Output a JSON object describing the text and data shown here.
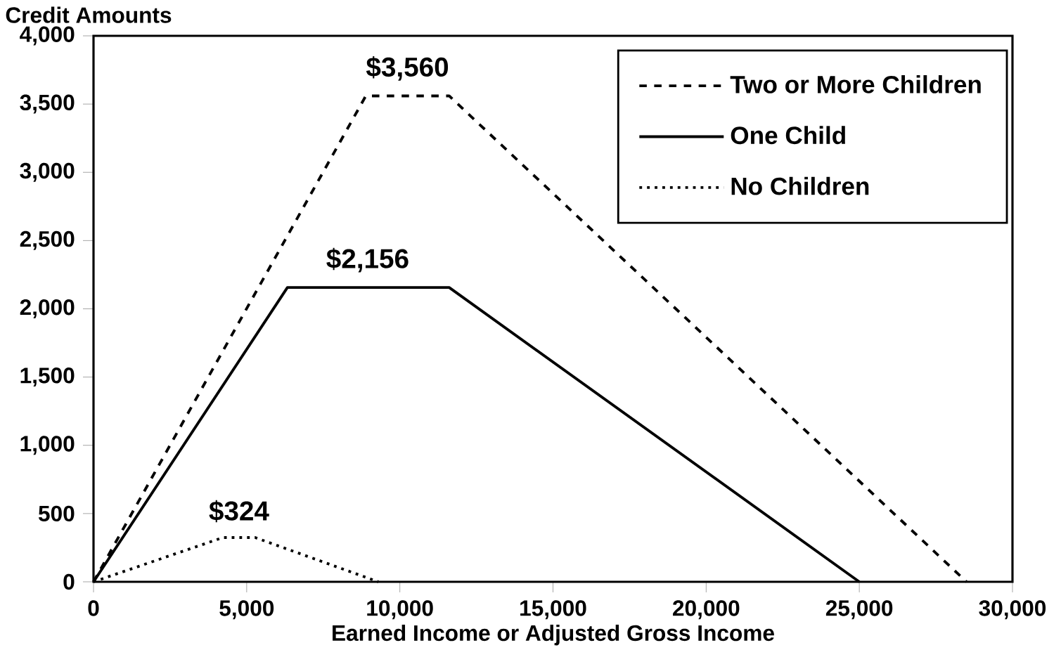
{
  "chart_data": {
    "type": "line",
    "xlabel": "Earned Income or Adjusted Gross Income",
    "ylabel": "Credit Amounts",
    "xlim": [
      0,
      30000
    ],
    "ylim": [
      0,
      4000
    ],
    "xticks": [
      {
        "value": 0,
        "label": "0"
      },
      {
        "value": 5000,
        "label": "5,000"
      },
      {
        "value": 10000,
        "label": "10,000"
      },
      {
        "value": 15000,
        "label": "15,000"
      },
      {
        "value": 20000,
        "label": "20,000"
      },
      {
        "value": 25000,
        "label": "25,000"
      },
      {
        "value": 30000,
        "label": "30,000"
      }
    ],
    "yticks": [
      {
        "value": 0,
        "label": "0"
      },
      {
        "value": 500,
        "label": "500"
      },
      {
        "value": 1000,
        "label": "1,000"
      },
      {
        "value": 1500,
        "label": "1,500"
      },
      {
        "value": 2000,
        "label": "2,000"
      },
      {
        "value": 2500,
        "label": "2,500"
      },
      {
        "value": 3000,
        "label": "3,000"
      },
      {
        "value": 3500,
        "label": "3,500"
      },
      {
        "value": 4000,
        "label": "4,000"
      }
    ],
    "series": [
      {
        "name": "Two or More Children",
        "color": "#000000",
        "line_style": "dashed",
        "x": [
          0,
          8890,
          11610,
          28500
        ],
        "values": [
          0,
          3560,
          3560,
          0
        ]
      },
      {
        "name": "One Child",
        "color": "#000000",
        "line_style": "solid",
        "x": [
          0,
          6330,
          11610,
          25000
        ],
        "values": [
          0,
          2156,
          2156,
          0
        ]
      },
      {
        "name": "No Children",
        "color": "#000000",
        "line_style": "dotted",
        "x": [
          0,
          4220,
          5280,
          9300
        ],
        "values": [
          0,
          324,
          324,
          0
        ]
      }
    ],
    "annotations": [
      {
        "text": "$3,560",
        "x": 10250,
        "y": 3560
      },
      {
        "text": "$2,156",
        "x": 8950,
        "y": 2156
      },
      {
        "text": "$324",
        "x": 4750,
        "y": 324
      }
    ],
    "legend": "top right",
    "grid": false
  }
}
